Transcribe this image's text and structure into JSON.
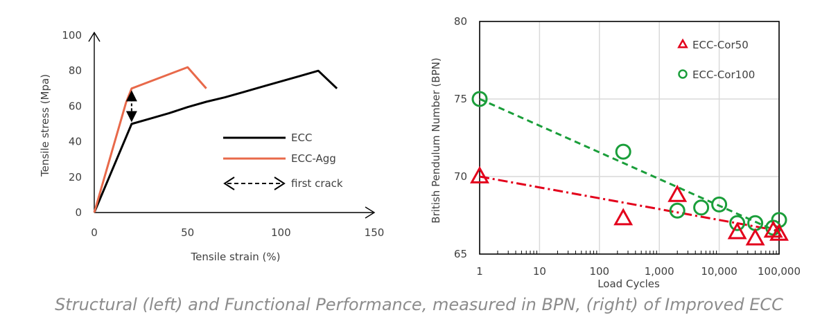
{
  "caption": "Structural (left) and Functional Performance, measured in BPN, (right) of Improved ECC",
  "colors": {
    "ecc": "#000000",
    "ecc_agg": "#e8694a",
    "cor50": "#e3001b",
    "cor100": "#1a9e3a",
    "grid": "#d9d9d9"
  },
  "chart_data": [
    {
      "type": "line",
      "xlabel": "Tensile strain (%)",
      "ylabel": "Tensile stress (Mpa)",
      "xlim": [
        0,
        150
      ],
      "ylim": [
        0,
        100
      ],
      "x_ticks": [
        "0",
        "50",
        "100",
        "150"
      ],
      "y_ticks": [
        "0",
        "20",
        "40",
        "60",
        "80",
        "100"
      ],
      "grid": false,
      "legend_position": "center-right",
      "series": [
        {
          "name": "ECC",
          "color": "#000000",
          "points": [
            [
              0,
              0
            ],
            [
              20,
              50
            ],
            [
              30,
              53
            ],
            [
              40,
              56
            ],
            [
              50,
              59.5
            ],
            [
              60,
              62.5
            ],
            [
              70,
              65
            ],
            [
              80,
              68
            ],
            [
              90,
              71
            ],
            [
              100,
              74
            ],
            [
              110,
              77
            ],
            [
              120,
              80
            ],
            [
              130,
              70
            ]
          ]
        },
        {
          "name": "ECC-Agg",
          "color": "#e8694a",
          "points": [
            [
              0,
              0
            ],
            [
              17,
              62
            ],
            [
              20,
              70
            ],
            [
              50,
              82
            ],
            [
              60,
              70
            ]
          ]
        }
      ],
      "annotations": [
        {
          "name": "first crack",
          "x": 20,
          "y_top": 69,
          "y_bottom": 51,
          "style": "dashed double arrow"
        }
      ]
    },
    {
      "type": "scatter",
      "xlabel": "Load Cycles",
      "ylabel": "British Pendulum Number (BPN)",
      "x_scale": "log",
      "xlim": [
        1,
        100000
      ],
      "ylim": [
        65,
        80
      ],
      "x_ticks": [
        "1",
        "10",
        "100",
        "1,000",
        "10,000",
        "100,000"
      ],
      "y_ticks": [
        "65",
        "70",
        "75",
        "80"
      ],
      "grid": true,
      "legend_position": "top-right",
      "series": [
        {
          "name": "ECC-Cor50",
          "marker": "triangle",
          "color": "#e3001b",
          "trendline": {
            "style": "dash-dot",
            "from": [
              1,
              70
            ],
            "to": [
              100000,
              66.5
            ]
          },
          "points": [
            [
              1,
              70
            ],
            [
              250,
              67.3
            ],
            [
              2000,
              68.8
            ],
            [
              20000,
              66.4
            ],
            [
              40000,
              66
            ],
            [
              80000,
              66.5
            ],
            [
              100000,
              66.3
            ]
          ]
        },
        {
          "name": "ECC-Cor100",
          "marker": "circle",
          "color": "#1a9e3a",
          "trendline": {
            "style": "dashed",
            "from": [
              1,
              75
            ],
            "to": [
              100000,
              66.4
            ]
          },
          "points": [
            [
              1,
              75
            ],
            [
              250,
              71.6
            ],
            [
              2000,
              67.8
            ],
            [
              5000,
              68
            ],
            [
              10000,
              68.2
            ],
            [
              20000,
              67
            ],
            [
              40000,
              67
            ],
            [
              80000,
              66.7
            ],
            [
              100000,
              67.2
            ]
          ]
        }
      ]
    }
  ]
}
